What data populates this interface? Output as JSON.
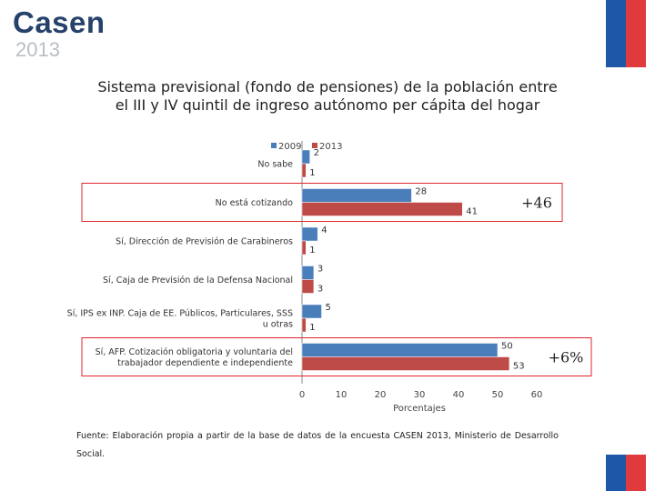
{
  "header": {
    "logo_text": "Casen",
    "logo_year": "2013"
  },
  "flag_colors": {
    "blue": "#1f57a8",
    "red": "#e03a3e"
  },
  "chart_data": {
    "type": "bar",
    "orientation": "horizontal",
    "title": "Sistema previsional (fondo de pensiones) de la población entre el III y IV quintil de ingreso autónomo per cápita del hogar",
    "title_lines": [
      "Sistema previsional (fondo de pensiones) de la población entre",
      "el III y IV quintil de ingreso autónomo per cápita del hogar"
    ],
    "xlabel": "Porcentajes",
    "xlim": [
      0,
      60
    ],
    "xticks": [
      0,
      10,
      20,
      30,
      40,
      50,
      60
    ],
    "legend_position": "top",
    "categories": [
      [
        "No sabe"
      ],
      [
        "No está cotizando"
      ],
      [
        "Sí, Dirección de Previsión de Carabineros"
      ],
      [
        "Sí, Caja de Previsión de la Defensa Nacional"
      ],
      [
        "Sí, IPS ex INP. Caja de EE. Públicos, Particulares, SSS",
        "u otras"
      ],
      [
        "Sí, AFP. Cotización obligatoria y voluntaria del",
        "trabajador dependiente e independiente"
      ]
    ],
    "series": [
      {
        "name": "2009",
        "color": "#4a7ebb",
        "values": [
          2,
          28,
          4,
          3,
          5,
          50
        ]
      },
      {
        "name": "2013",
        "color": "#be4b48",
        "values": [
          1,
          41,
          1,
          3,
          1,
          53
        ]
      }
    ],
    "annotations": [
      {
        "text": "+46",
        "category_index": 1,
        "highlight_color": "#e0252b"
      },
      {
        "text": "+6%",
        "category_index": 5,
        "highlight_color": "#e0252b"
      }
    ]
  },
  "footer": {
    "source": "Fuente: Elaboración propia a partir de la base de datos de la encuesta CASEN 2013, Ministerio de Desarrollo Social."
  }
}
